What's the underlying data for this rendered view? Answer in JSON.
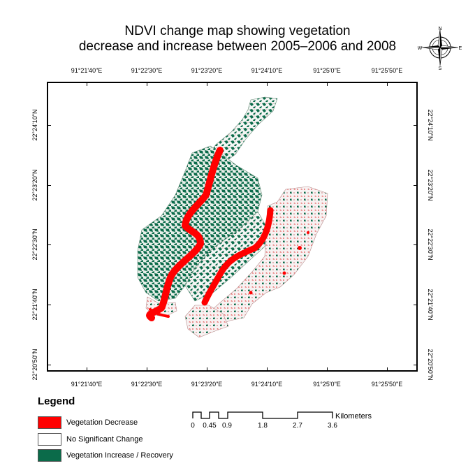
{
  "title": {
    "line1": "NDVI change map showing vegetation",
    "line2": "decrease and increase between 2005–2006 and 2008"
  },
  "colors": {
    "decrease": "#ff0000",
    "no_change": "#ffffff",
    "increase": "#0b6b4a",
    "frame": "#000000"
  },
  "graticule": {
    "top": [
      "91°21'40\"E",
      "91°22'30\"E",
      "91°23'20\"E",
      "91°24'10\"E",
      "91°25'0\"E",
      "91°25'50\"E"
    ],
    "bottom": [
      "91°21'40\"E",
      "91°22'30\"E",
      "91°23'20\"E",
      "91°24'10\"E",
      "91°25'0\"E",
      "91°25'50\"E"
    ],
    "left": [
      "22°24'10\"N",
      "22°23'20\"N",
      "22°22'30\"N",
      "22°21'40\"N",
      "22°20'50\"N"
    ],
    "right": [
      "22°24'10\"N",
      "22°23'20\"N",
      "22°22'30\"N",
      "22°21'40\"N",
      "22°20'50\"N"
    ]
  },
  "north_arrow": {
    "icon": "compass-rose-icon",
    "n": "N",
    "s": "S",
    "e": "E",
    "w": "W"
  },
  "legend": {
    "title": "Legend",
    "items": [
      {
        "label": "Vegetation Decrease",
        "color": "#ff0000"
      },
      {
        "label": "No Significant Change",
        "color": "#ffffff"
      },
      {
        "label": "Vegetation Increase / Recovery",
        "color": "#0b6b4a"
      }
    ]
  },
  "scale_bar": {
    "unit": "Kilometers",
    "labels": [
      "0",
      "0.45",
      "0.9",
      "1.8",
      "2.7",
      "3.6"
    ]
  }
}
